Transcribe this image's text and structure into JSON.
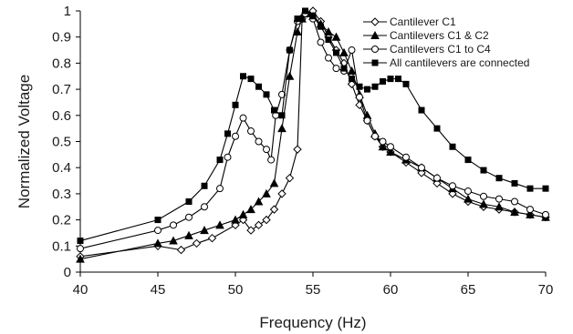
{
  "chart_data": {
    "type": "line",
    "xlabel": "Frequency (Hz)",
    "ylabel": "Normalized Voltage",
    "xlim": [
      40,
      70
    ],
    "ylim": [
      0,
      1
    ],
    "xticks": [
      "40",
      "45",
      "50",
      "55",
      "60",
      "65",
      "70"
    ],
    "yticks": [
      "0",
      "0.1",
      "0.2",
      "0.3",
      "0.4",
      "0.5",
      "0.6",
      "0.7",
      "0.8",
      "0.9",
      "1"
    ],
    "grid": false,
    "legend_position": "top-right",
    "series": [
      {
        "name": "Cantilever C1",
        "marker": "diamond",
        "color": "#000000",
        "x": [
          40,
          45,
          46.5,
          47.5,
          48.5,
          50,
          50.5,
          51,
          51.5,
          52,
          52.5,
          53,
          53.5,
          54,
          54.3,
          54.6,
          55,
          55.5,
          56,
          56.5,
          57,
          57.5,
          58,
          58.5,
          59,
          59.5,
          60,
          61,
          62,
          63,
          64,
          65,
          66,
          67,
          68,
          69,
          70
        ],
        "y": [
          0.06,
          0.1,
          0.085,
          0.11,
          0.13,
          0.18,
          0.2,
          0.16,
          0.18,
          0.2,
          0.24,
          0.3,
          0.36,
          0.47,
          0.97,
          0.99,
          1.0,
          0.96,
          0.9,
          0.85,
          0.8,
          0.72,
          0.64,
          0.58,
          0.52,
          0.48,
          0.46,
          0.42,
          0.38,
          0.34,
          0.3,
          0.27,
          0.25,
          0.24,
          0.23,
          0.22,
          0.21
        ]
      },
      {
        "name": "Cantilevers C1 & C2",
        "marker": "triangle",
        "color": "#000000",
        "x": [
          40,
          45,
          46,
          47,
          48,
          49,
          50,
          50.5,
          51,
          51.5,
          52,
          52.5,
          53,
          53.5,
          54,
          54.3,
          54.6,
          55,
          55.5,
          56,
          56.5,
          57,
          57.5,
          58,
          58.5,
          59,
          59.5,
          60,
          61,
          62,
          63,
          64,
          65,
          66,
          67,
          68,
          69,
          70
        ],
        "y": [
          0.05,
          0.11,
          0.12,
          0.14,
          0.16,
          0.18,
          0.2,
          0.22,
          0.24,
          0.27,
          0.3,
          0.34,
          0.55,
          0.75,
          0.92,
          0.97,
          0.99,
          0.98,
          0.95,
          0.92,
          0.9,
          0.84,
          0.77,
          0.68,
          0.6,
          0.53,
          0.48,
          0.46,
          0.43,
          0.4,
          0.36,
          0.32,
          0.28,
          0.26,
          0.25,
          0.23,
          0.22,
          0.21
        ]
      },
      {
        "name": "Cantilevers C1 to C4",
        "marker": "circle",
        "color": "#000000",
        "x": [
          40,
          45,
          46,
          47,
          48,
          49,
          49.5,
          50,
          50.5,
          51,
          51.5,
          52,
          52.3,
          52.6,
          53,
          53.5,
          54,
          54.5,
          55,
          55.5,
          56,
          56.5,
          57,
          57.5,
          58,
          58.5,
          59,
          59.5,
          60,
          61,
          62,
          63,
          64,
          65,
          66,
          67,
          68,
          69,
          70
        ],
        "y": [
          0.09,
          0.16,
          0.18,
          0.21,
          0.25,
          0.32,
          0.44,
          0.52,
          0.59,
          0.54,
          0.5,
          0.47,
          0.43,
          0.6,
          0.68,
          0.85,
          0.96,
          0.99,
          0.97,
          0.88,
          0.82,
          0.78,
          0.77,
          0.85,
          0.67,
          0.58,
          0.52,
          0.5,
          0.48,
          0.44,
          0.4,
          0.36,
          0.33,
          0.31,
          0.29,
          0.28,
          0.27,
          0.24,
          0.22
        ]
      },
      {
        "name": "All cantilevers are connected",
        "marker": "square",
        "color": "#000000",
        "x": [
          40,
          45,
          47,
          48,
          49,
          49.5,
          50,
          50.5,
          51,
          51.5,
          52,
          52.5,
          53,
          53.5,
          54,
          54.5,
          55,
          55.5,
          56,
          56.5,
          57,
          57.5,
          58,
          58.5,
          59,
          59.5,
          60,
          60.5,
          61,
          62,
          63,
          64,
          65,
          66,
          67,
          68,
          69,
          70
        ],
        "y": [
          0.12,
          0.2,
          0.27,
          0.33,
          0.43,
          0.53,
          0.64,
          0.75,
          0.74,
          0.71,
          0.68,
          0.62,
          0.6,
          0.85,
          0.97,
          1.0,
          0.98,
          0.94,
          0.89,
          0.84,
          0.78,
          0.74,
          0.71,
          0.7,
          0.71,
          0.73,
          0.74,
          0.74,
          0.72,
          0.62,
          0.55,
          0.48,
          0.43,
          0.39,
          0.36,
          0.34,
          0.32,
          0.32
        ]
      }
    ]
  }
}
